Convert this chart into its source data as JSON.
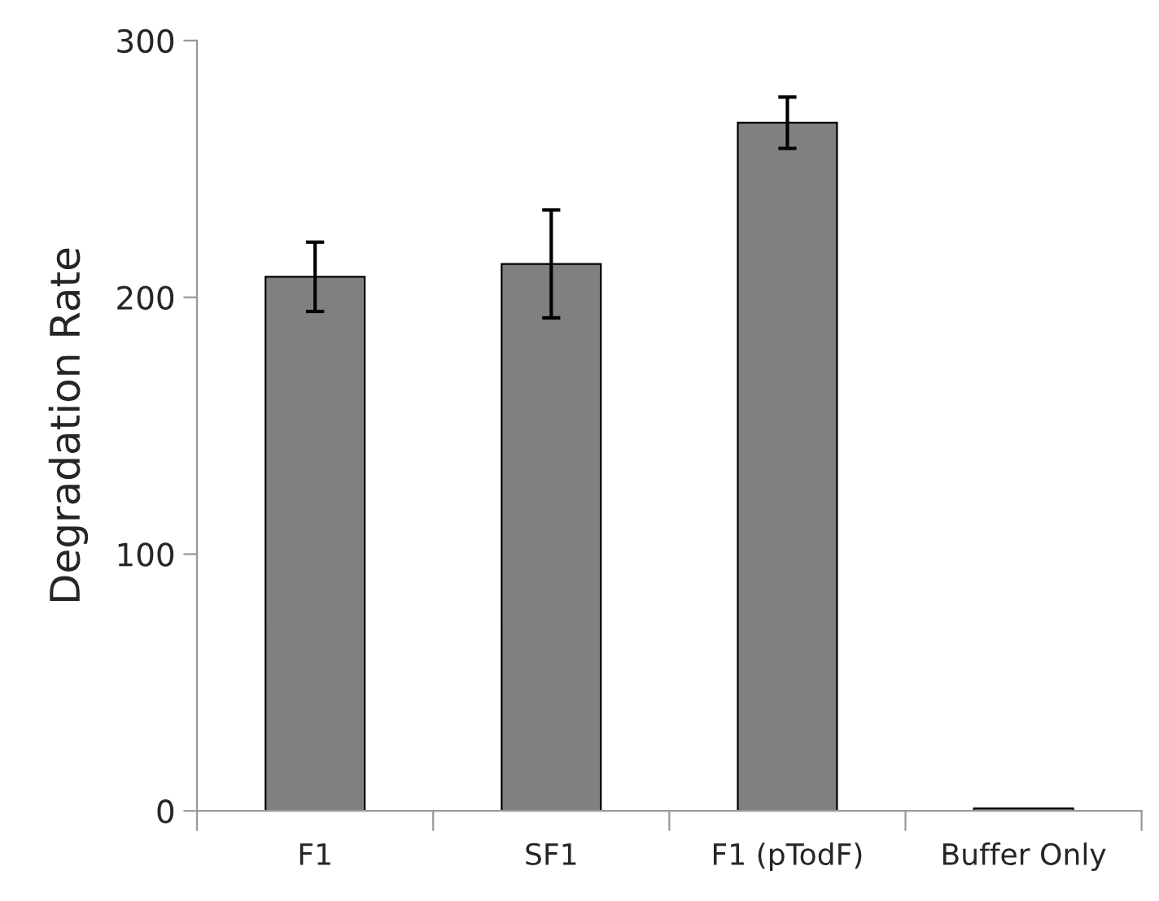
{
  "chart_data": {
    "type": "bar",
    "ylabel": "Degradation Rate",
    "categories": [
      "F1",
      "SF1",
      "F1 (pTodF)",
      "Buffer Only"
    ],
    "values": [
      208,
      213,
      268,
      1
    ],
    "errors": [
      13.5,
      21,
      10,
      null
    ],
    "color": "#808080",
    "ylim": [
      0,
      300
    ],
    "yticks": [
      0,
      100,
      200,
      300
    ],
    "grid": false,
    "legend": false
  }
}
